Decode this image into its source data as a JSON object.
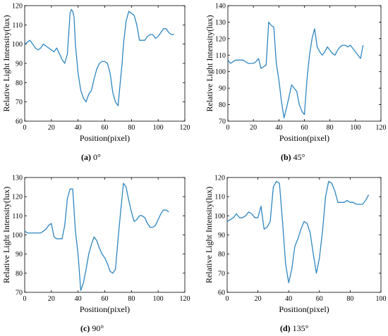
{
  "chart_data": [
    {
      "type": "line",
      "xlabel": "Position(pixel)",
      "ylabel": "Relative Light Intensity(lux)",
      "xlim": [
        0,
        120
      ],
      "ylim": [
        60,
        120
      ],
      "xticks": [
        0,
        20,
        40,
        60,
        80,
        100,
        120
      ],
      "yticks": [
        60,
        70,
        80,
        90,
        100,
        110,
        120
      ],
      "caption_letter": "(a)",
      "caption_text": "0°",
      "color": "#2E86C1",
      "series": [
        {
          "x": [
            0,
            2,
            4,
            6,
            8,
            10,
            12,
            14,
            16,
            18,
            20,
            22,
            24,
            26,
            28,
            30,
            32,
            34,
            35,
            36,
            37,
            38,
            40,
            42,
            44,
            46,
            48,
            50,
            52,
            54,
            56,
            58,
            60,
            62,
            64,
            66,
            68,
            70,
            72,
            73,
            74,
            76,
            78,
            80,
            82,
            84,
            86,
            88,
            90,
            92,
            94,
            96,
            98,
            100,
            102,
            104,
            106,
            108,
            110,
            112
          ],
          "y": [
            100,
            101,
            102,
            100,
            98,
            97,
            98,
            100,
            99,
            98,
            97,
            96,
            98,
            95,
            92,
            90,
            95,
            116,
            118,
            117,
            114,
            100,
            85,
            76,
            72,
            70,
            74,
            76,
            82,
            87,
            90,
            91,
            91,
            90,
            85,
            75,
            70,
            68,
            83,
            90,
            100,
            112,
            117,
            116,
            115,
            110,
            102,
            102,
            102,
            104,
            105,
            105,
            103,
            104,
            106,
            108,
            108,
            106,
            105,
            105
          ]
        }
      ]
    },
    {
      "type": "line",
      "xlabel": "Position(pixel)",
      "ylabel": "Relative Light Intensity(lux)",
      "xlim": [
        0,
        120
      ],
      "ylim": [
        70,
        140
      ],
      "xticks": [
        0,
        20,
        40,
        60,
        80,
        100,
        120
      ],
      "yticks": [
        70,
        80,
        90,
        100,
        110,
        120,
        130,
        140
      ],
      "caption_letter": "(b)",
      "caption_text": "45°",
      "color": "#2E86C1",
      "series": [
        {
          "x": [
            0,
            2,
            4,
            6,
            8,
            10,
            12,
            14,
            16,
            18,
            20,
            22,
            24,
            26,
            28,
            30,
            32,
            34,
            36,
            38,
            40,
            42,
            44,
            46,
            48,
            50,
            52,
            54,
            56,
            58,
            60,
            62,
            64,
            66,
            68,
            70,
            72,
            74,
            76,
            78,
            80,
            82,
            84,
            86,
            88,
            90,
            92,
            94,
            96,
            98,
            100,
            102,
            104,
            106
          ],
          "y": [
            107,
            105,
            106,
            107,
            107,
            107,
            107,
            106,
            105,
            105,
            105,
            106,
            108,
            102,
            103,
            104,
            130,
            128,
            127,
            105,
            95,
            82,
            72,
            78,
            85,
            92,
            90,
            88,
            80,
            76,
            74,
            95,
            110,
            120,
            126,
            115,
            112,
            110,
            112,
            115,
            113,
            111,
            110,
            113,
            115,
            116,
            116,
            115,
            116,
            114,
            112,
            110,
            108,
            116
          ]
        }
      ]
    },
    {
      "type": "line",
      "xlabel": "Position(pixel)",
      "ylabel": "Relative Light Intensity(lux)",
      "xlim": [
        0,
        120
      ],
      "ylim": [
        70,
        130
      ],
      "xticks": [
        0,
        20,
        40,
        60,
        80,
        100,
        120
      ],
      "yticks": [
        70,
        80,
        90,
        100,
        110,
        120,
        130
      ],
      "caption_letter": "(c)",
      "caption_text": "90°",
      "color": "#2E86C1",
      "series": [
        {
          "x": [
            0,
            2,
            4,
            6,
            8,
            10,
            12,
            14,
            16,
            18,
            20,
            22,
            24,
            26,
            28,
            30,
            32,
            34,
            36,
            38,
            40,
            42,
            44,
            46,
            48,
            50,
            52,
            54,
            56,
            58,
            60,
            62,
            64,
            66,
            68,
            70,
            72,
            74,
            76,
            78,
            80,
            82,
            84,
            86,
            88,
            90,
            92,
            94,
            96,
            98,
            100,
            102,
            104,
            106,
            108
          ],
          "y": [
            102,
            101,
            101,
            101,
            101,
            101,
            101,
            102,
            103,
            105,
            106,
            99,
            98,
            98,
            98,
            105,
            119,
            124,
            124,
            102,
            90,
            71,
            75,
            82,
            90,
            95,
            99,
            97,
            93,
            90,
            88,
            85,
            81,
            80,
            82,
            98,
            113,
            127,
            125,
            118,
            112,
            107,
            108,
            110,
            110,
            109,
            106,
            104,
            104,
            105,
            108,
            111,
            113,
            113,
            112
          ]
        }
      ]
    },
    {
      "type": "line",
      "xlabel": "Position(pixel)",
      "ylabel": "Relative Light Intensity(lux)",
      "xlim": [
        0,
        100
      ],
      "ylim": [
        60,
        120
      ],
      "xticks": [
        0,
        20,
        40,
        60,
        80,
        100
      ],
      "yticks": [
        60,
        70,
        80,
        90,
        100,
        110,
        120
      ],
      "caption_letter": "(d)",
      "caption_text": "135°",
      "color": "#2E86C1",
      "series": [
        {
          "x": [
            0,
            2,
            4,
            6,
            8,
            10,
            12,
            14,
            16,
            18,
            20,
            22,
            24,
            26,
            28,
            30,
            32,
            34,
            36,
            38,
            40,
            42,
            44,
            46,
            48,
            50,
            52,
            54,
            56,
            58,
            60,
            62,
            64,
            66,
            68,
            70,
            72,
            74,
            76,
            78,
            80,
            82,
            84,
            86,
            88,
            90,
            92
          ],
          "y": [
            97,
            98,
            99,
            101,
            99,
            99,
            100,
            102,
            101,
            99,
            99,
            105,
            93,
            94,
            97,
            115,
            118,
            117,
            97,
            75,
            65,
            72,
            84,
            88,
            93,
            97,
            96,
            91,
            80,
            70,
            78,
            92,
            110,
            118,
            117,
            113,
            107,
            107,
            107,
            108,
            107,
            107,
            106,
            106,
            106,
            108,
            111
          ]
        }
      ]
    }
  ]
}
